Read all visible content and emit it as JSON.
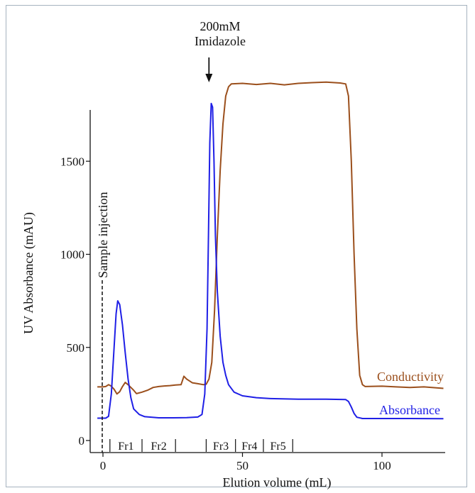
{
  "chart_data": {
    "type": "line",
    "xlabel": "Elution volume (mL)",
    "ylabel": "UV Absorbance (mAU)",
    "xlim": [
      -4,
      123
    ],
    "ylim": [
      -40,
      1800
    ],
    "x_ticks": [
      0,
      50,
      100
    ],
    "y_ticks": [
      0,
      500,
      1000,
      1500
    ],
    "grid": false,
    "legend": "inline labels at right end of each series",
    "series": [
      {
        "name": "Absorbance",
        "color": "#1f1fe6",
        "points": [
          [
            -2,
            120
          ],
          [
            1,
            120
          ],
          [
            2,
            130
          ],
          [
            3,
            250
          ],
          [
            4,
            500
          ],
          [
            4.7,
            680
          ],
          [
            5.3,
            750
          ],
          [
            6,
            730
          ],
          [
            7,
            620
          ],
          [
            8,
            470
          ],
          [
            9,
            330
          ],
          [
            10,
            230
          ],
          [
            11,
            170
          ],
          [
            13,
            140
          ],
          [
            15,
            128
          ],
          [
            20,
            122
          ],
          [
            25,
            122
          ],
          [
            30,
            123
          ],
          [
            34,
            126
          ],
          [
            35.5,
            140
          ],
          [
            36.5,
            250
          ],
          [
            37.3,
            600
          ],
          [
            37.8,
            1100
          ],
          [
            38.3,
            1600
          ],
          [
            38.8,
            1810
          ],
          [
            39.3,
            1790
          ],
          [
            39.8,
            1500
          ],
          [
            40.3,
            1100
          ],
          [
            41,
            800
          ],
          [
            42,
            560
          ],
          [
            43,
            420
          ],
          [
            44,
            350
          ],
          [
            45,
            300
          ],
          [
            47,
            260
          ],
          [
            50,
            240
          ],
          [
            55,
            230
          ],
          [
            60,
            225
          ],
          [
            70,
            222
          ],
          [
            80,
            222
          ],
          [
            87,
            220
          ],
          [
            88,
            210
          ],
          [
            89,
            180
          ],
          [
            90,
            145
          ],
          [
            91,
            125
          ],
          [
            93,
            118
          ],
          [
            100,
            118
          ],
          [
            110,
            118
          ],
          [
            122,
            117
          ]
        ]
      },
      {
        "name": "Conductivity",
        "color": "#9b4f1c",
        "points": [
          [
            -2,
            288
          ],
          [
            0,
            288
          ],
          [
            1,
            290
          ],
          [
            2,
            300
          ],
          [
            3,
            292
          ],
          [
            4,
            275
          ],
          [
            5,
            250
          ],
          [
            6,
            262
          ],
          [
            7,
            290
          ],
          [
            8,
            312
          ],
          [
            9,
            300
          ],
          [
            10,
            285
          ],
          [
            11,
            270
          ],
          [
            12,
            252
          ],
          [
            14,
            260
          ],
          [
            16,
            270
          ],
          [
            18,
            285
          ],
          [
            20,
            290
          ],
          [
            22,
            293
          ],
          [
            24,
            295
          ],
          [
            26,
            298
          ],
          [
            28,
            300
          ],
          [
            29,
            345
          ],
          [
            30,
            330
          ],
          [
            32,
            310
          ],
          [
            34,
            305
          ],
          [
            36,
            300
          ],
          [
            37,
            302
          ],
          [
            38,
            330
          ],
          [
            39,
            420
          ],
          [
            40,
            700
          ],
          [
            41,
            1100
          ],
          [
            42,
            1450
          ],
          [
            43,
            1700
          ],
          [
            44,
            1850
          ],
          [
            45,
            1900
          ],
          [
            46,
            1915
          ],
          [
            50,
            1918
          ],
          [
            55,
            1912
          ],
          [
            60,
            1918
          ],
          [
            65,
            1910
          ],
          [
            70,
            1918
          ],
          [
            75,
            1922
          ],
          [
            80,
            1925
          ],
          [
            85,
            1920
          ],
          [
            87,
            1915
          ],
          [
            88,
            1850
          ],
          [
            89,
            1500
          ],
          [
            90,
            1000
          ],
          [
            91,
            600
          ],
          [
            92,
            350
          ],
          [
            93,
            300
          ],
          [
            94,
            290
          ],
          [
            100,
            292
          ],
          [
            105,
            288
          ],
          [
            110,
            285
          ],
          [
            115,
            288
          ],
          [
            122,
            280
          ]
        ]
      }
    ],
    "annotations": [
      {
        "text_lines": [
          "200mM",
          "Imidazole"
        ],
        "x": 38.5,
        "kind": "arrow"
      },
      {
        "text": "Sample injection",
        "x": 0,
        "kind": "dashed-vertical-line"
      }
    ],
    "fractions": [
      {
        "label": "Fr1",
        "from": 2.5,
        "to": 14
      },
      {
        "label": "Fr2",
        "from": 14,
        "to": 26
      },
      {
        "label": "Fr3",
        "from": 37,
        "to": 47.5
      },
      {
        "label": "Fr4",
        "from": 47.5,
        "to": 57.5
      },
      {
        "label": "Fr5",
        "from": 57.5,
        "to": 68
      }
    ]
  }
}
